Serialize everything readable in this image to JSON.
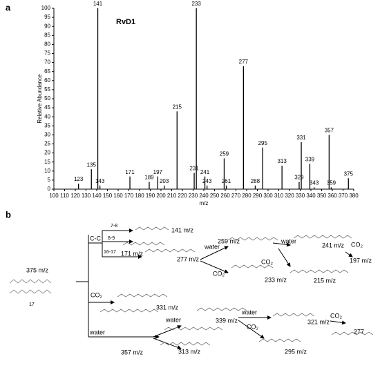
{
  "panel_labels": [
    "a",
    "b"
  ],
  "chart_data": {
    "type": "spectrum",
    "annotation": "RvD1",
    "x_label": "m/z",
    "y_label": "Relative Abundance",
    "x": [
      123,
      135,
      141,
      143,
      171,
      189,
      197,
      203,
      215,
      231,
      233,
      241,
      243,
      259,
      261,
      277,
      288,
      295,
      313,
      329,
      331,
      339,
      343,
      357,
      359,
      375
    ],
    "values": [
      3,
      11,
      100,
      2,
      7,
      4,
      7,
      2,
      43,
      9,
      100,
      7,
      2,
      17,
      2,
      68,
      2,
      23,
      13,
      4,
      26,
      14,
      1,
      30,
      1,
      6
    ],
    "color": "#000000",
    "xlim": [
      100,
      380
    ],
    "xticks": [
      100,
      110,
      120,
      130,
      140,
      150,
      160,
      170,
      180,
      190,
      200,
      210,
      220,
      230,
      240,
      250,
      260,
      270,
      280,
      290,
      300,
      310,
      320,
      330,
      340,
      350,
      360,
      370,
      380
    ],
    "ylim": [
      0,
      100
    ],
    "yticks": [
      0,
      5,
      10,
      15,
      20,
      25,
      30,
      35,
      40,
      45,
      50,
      55,
      60,
      65,
      70,
      75,
      80,
      85,
      90,
      95,
      100
    ]
  },
  "diagram": {
    "labels": [
      "375 m/z",
      "C-C",
      "7-8",
      "8-9",
      "16-17",
      "141 m/z",
      "171 m/z",
      "277 m/z",
      "CO₂",
      "331 m/z",
      "water",
      "357 m/z",
      "water",
      "259 m/z",
      "CO₂",
      "233 m/z",
      "water",
      "241 m/z",
      "CO₂",
      "197 m/z",
      "CO₂",
      "215 m/z",
      "water",
      "339 m/z",
      "water",
      "CO₂",
      "321 m/z",
      "CO₂",
      "277",
      "313 m/z",
      "295 m/z",
      "17"
    ]
  }
}
